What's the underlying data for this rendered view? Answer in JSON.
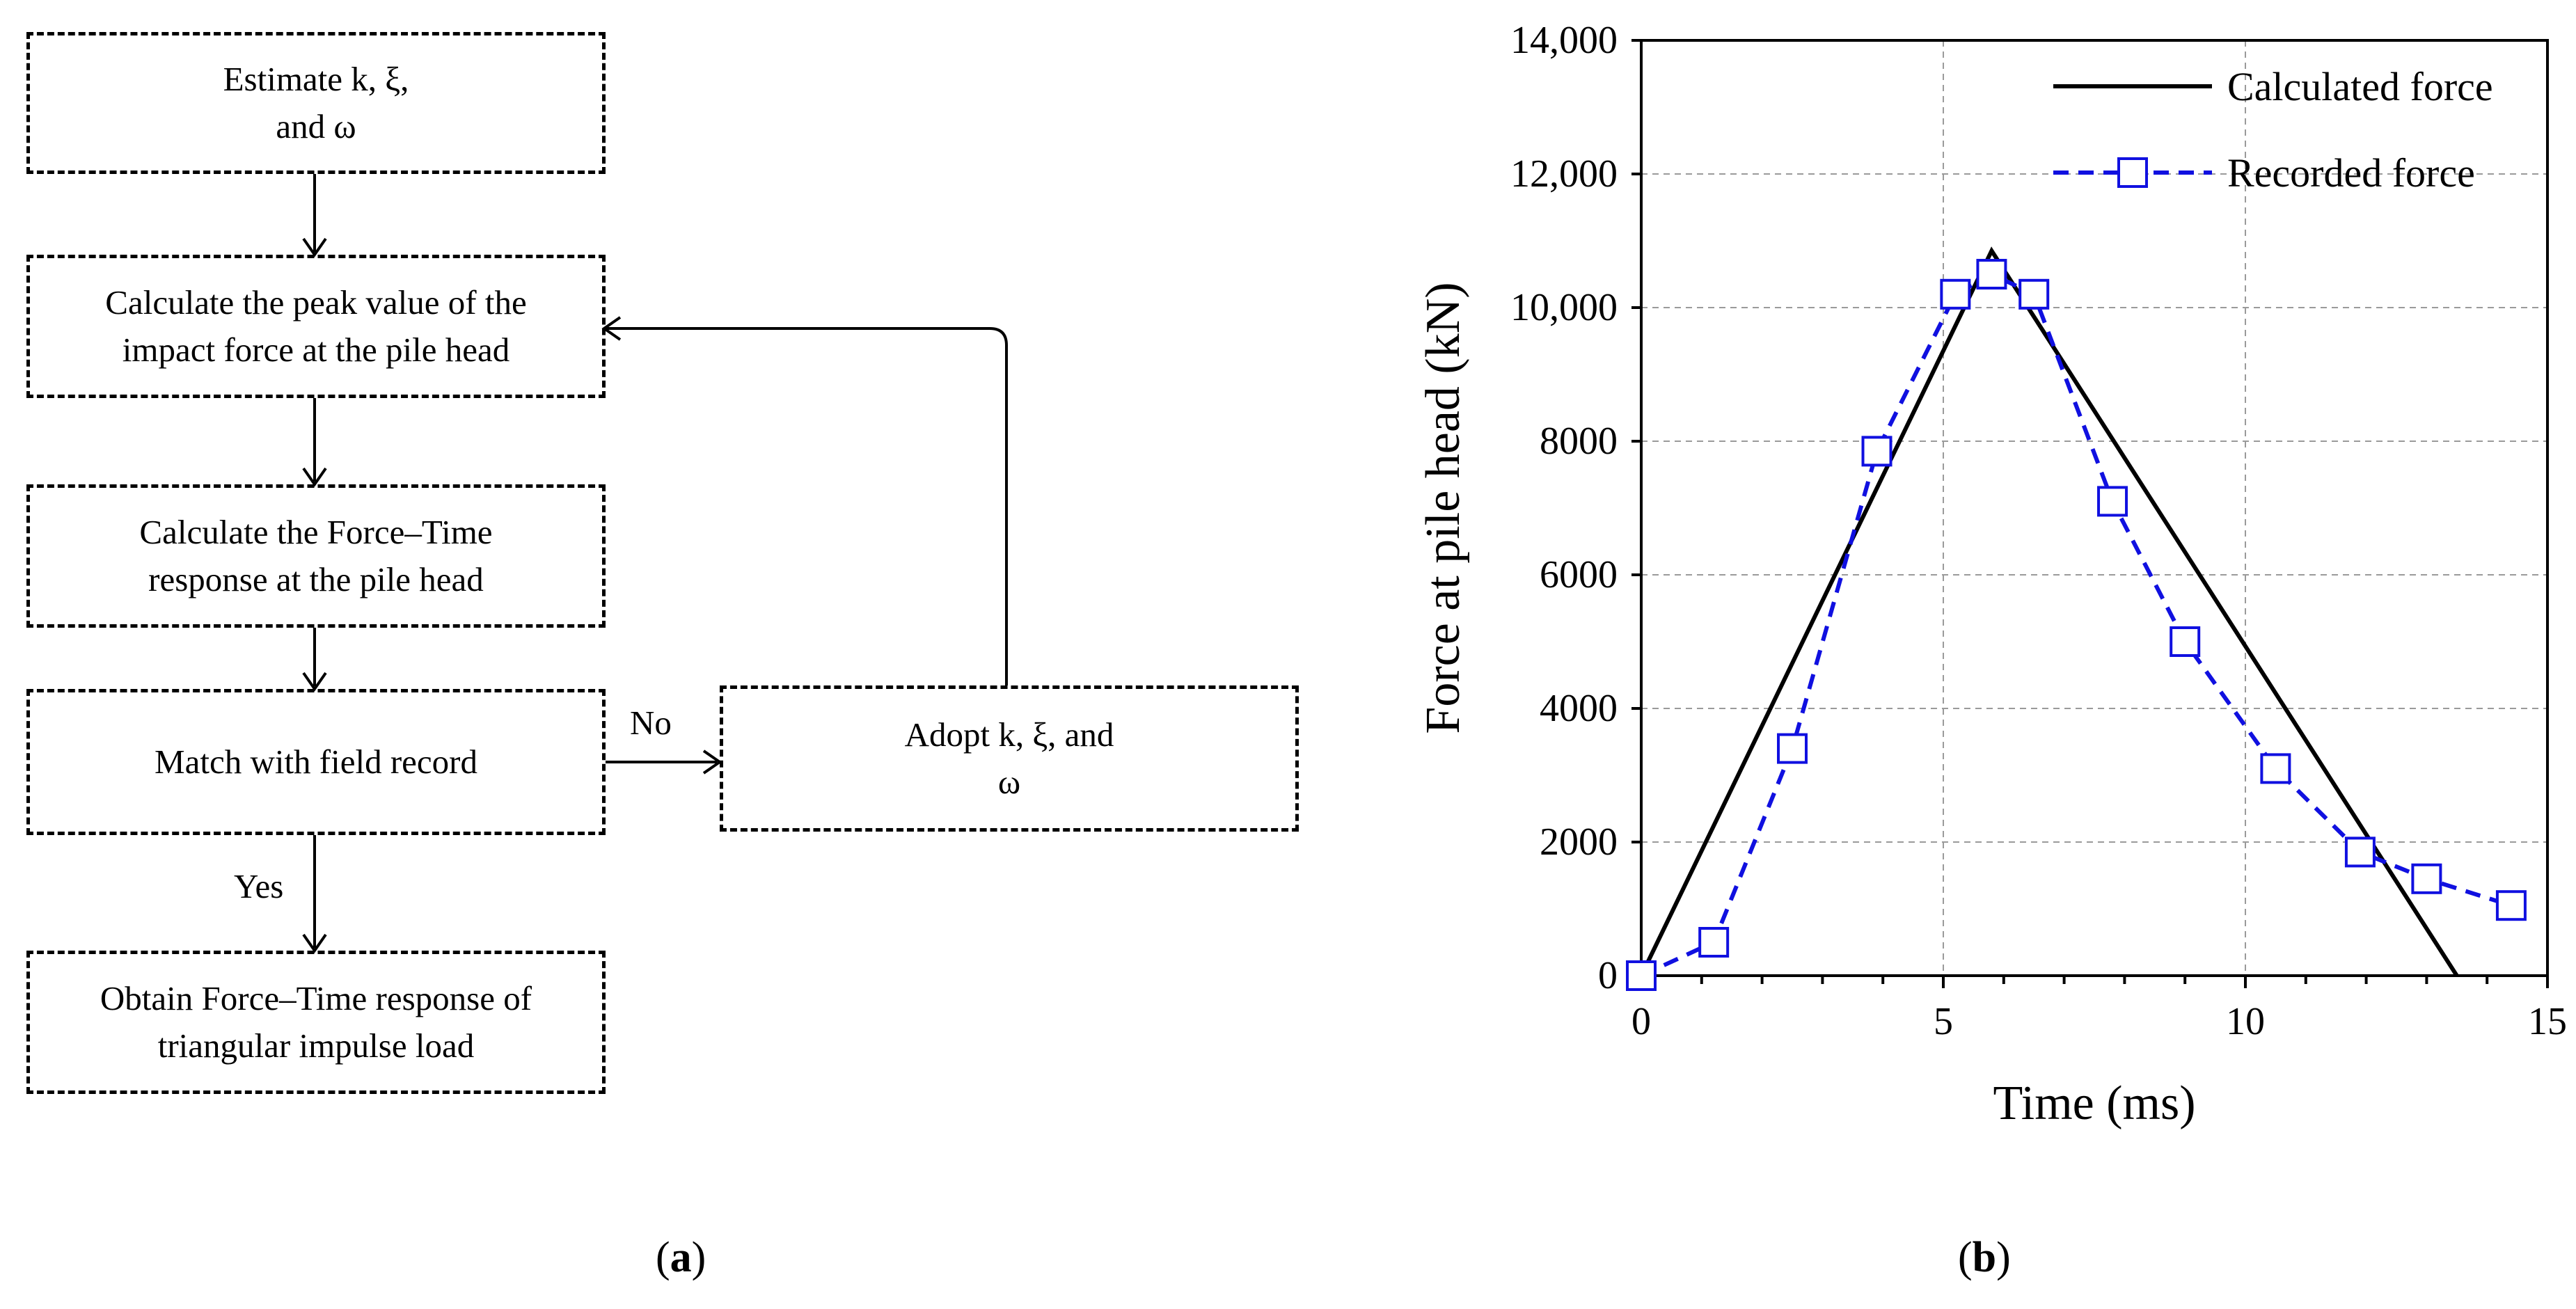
{
  "flowchart": {
    "boxes": {
      "estimate": "Estimate k, ξ,\nand   ω",
      "peak": "Calculate the peak value of the\nimpact force at the pile head",
      "response": "Calculate the Force–Time\nresponse at the pile head",
      "match": "Match with field record",
      "adopt": "Adopt k, ξ,   and\nω",
      "obtain": "Obtain Force–Time response of\ntriangular impulse load"
    },
    "edge_labels": {
      "no": "No",
      "yes": "Yes"
    }
  },
  "panel_labels": {
    "a_open": "(",
    "a_letter": "a",
    "a_close": ")",
    "b_open": "(",
    "b_letter": "b",
    "b_close": ")"
  },
  "chart_data": {
    "type": "line",
    "xlabel": "Time (ms)",
    "ylabel": "Force at pile head (kN)",
    "xlim": [
      0,
      15
    ],
    "ylim": [
      0,
      14000
    ],
    "x_ticks": [
      {
        "value": 0,
        "label": "0"
      },
      {
        "value": 5,
        "label": "5"
      },
      {
        "value": 10,
        "label": "10"
      },
      {
        "value": 15,
        "label": "15"
      }
    ],
    "y_ticks": [
      {
        "value": 0,
        "label": "0"
      },
      {
        "value": 2000,
        "label": "2000"
      },
      {
        "value": 4000,
        "label": "4000"
      },
      {
        "value": 6000,
        "label": "6000"
      },
      {
        "value": 8000,
        "label": "8000"
      },
      {
        "value": 10000,
        "label": "10,000"
      },
      {
        "value": 12000,
        "label": "12,000"
      },
      {
        "value": 14000,
        "label": "14,000"
      }
    ],
    "x_minor_step": 1,
    "grid": true,
    "legend_position": "top-right",
    "series": [
      {
        "name": "Calculated force",
        "color": "#000000",
        "style": "solid",
        "marker": "none",
        "x": [
          0,
          5.8,
          13.5
        ],
        "y": [
          0,
          10850,
          0
        ]
      },
      {
        "name": "Recorded force",
        "color": "#1010e0",
        "style": "dashed",
        "marker": "square",
        "x": [
          0,
          1.2,
          2.5,
          3.9,
          5.2,
          5.8,
          6.5,
          7.8,
          9.0,
          10.5,
          11.9,
          13.0,
          14.4
        ],
        "y": [
          0,
          500,
          3400,
          7850,
          10200,
          10500,
          10200,
          7100,
          5000,
          3100,
          1850,
          1450,
          1050
        ]
      }
    ]
  }
}
